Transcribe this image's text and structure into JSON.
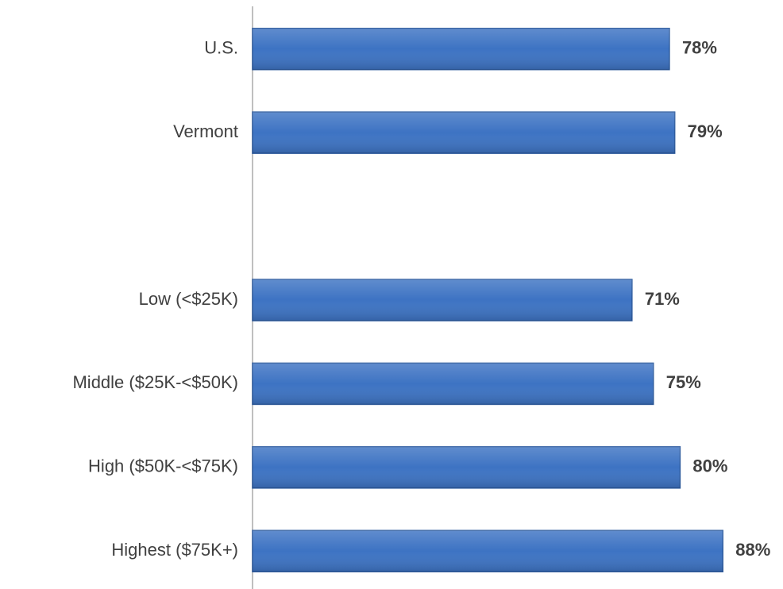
{
  "chart_data": {
    "type": "bar",
    "orientation": "horizontal",
    "categories": [
      "U.S.",
      "Vermont",
      null,
      "Low (<$25K)",
      "Middle ($25K-<$50K)",
      "High ($50K-<$75K)",
      "Highest ($75K+)"
    ],
    "values": [
      78,
      79,
      null,
      71,
      75,
      80,
      88
    ],
    "value_labels": [
      "78%",
      "79%",
      null,
      "71%",
      "75%",
      "80%",
      "88%"
    ],
    "color": "#3d73c3",
    "xlim": [
      0,
      100
    ]
  }
}
